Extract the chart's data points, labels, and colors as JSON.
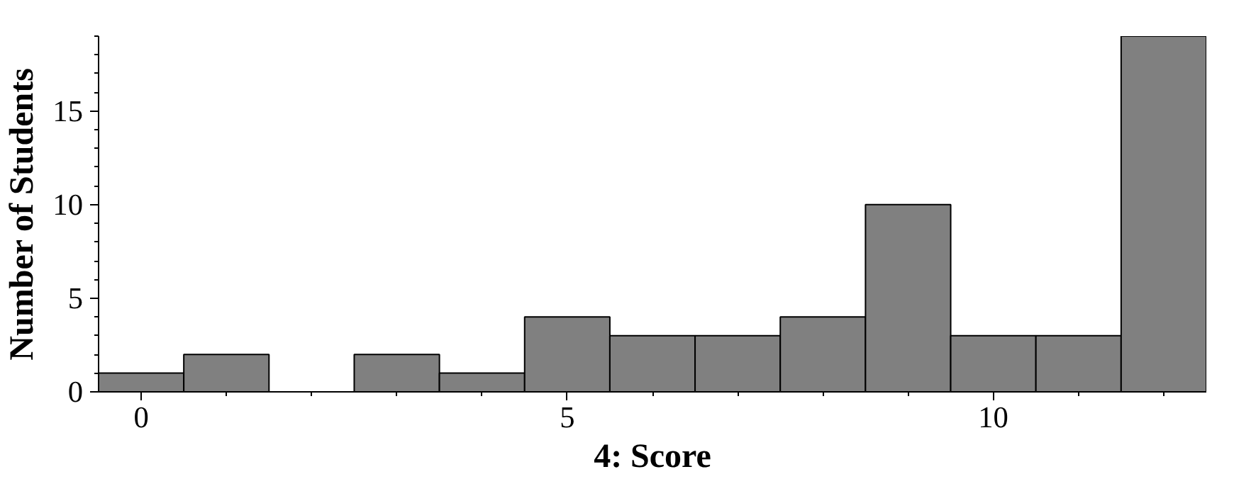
{
  "chart_data": {
    "type": "histogram",
    "xlabel": "4: Score",
    "ylabel": "Number of Students",
    "bins": [
      -0.5,
      0.5,
      1.5,
      2.5,
      3.5,
      4.5,
      5.5,
      6.5,
      7.5,
      8.5,
      9.5,
      10.5,
      11.5,
      12.5
    ],
    "values": [
      1,
      2,
      0,
      2,
      1,
      4,
      3,
      3,
      4,
      10,
      3,
      3,
      19
    ],
    "color": "#808080",
    "xlim": [
      -0.5,
      12.5
    ],
    "ylim": [
      0,
      19
    ],
    "xticks": [
      0,
      {
        "value": 1,
        "label": null
      },
      {
        "value": 2,
        "label": null
      },
      {
        "value": 3,
        "label": null
      },
      {
        "value": 4,
        "label": null
      },
      5,
      {
        "value": 6,
        "label": null
      },
      {
        "value": 7,
        "label": null
      },
      {
        "value": 8,
        "label": null
      },
      {
        "value": 9,
        "label": null
      },
      10,
      {
        "value": 11,
        "label": null
      },
      {
        "value": 12,
        "label": null
      }
    ],
    "yticks": [
      0,
      {
        "value": 1,
        "label": null
      },
      {
        "value": 2,
        "label": null
      },
      {
        "value": 3,
        "label": null
      },
      {
        "value": 4,
        "label": null
      },
      5,
      {
        "value": 6,
        "label": null
      },
      {
        "value": 7,
        "label": null
      },
      {
        "value": 8,
        "label": null
      },
      {
        "value": 9,
        "label": null
      },
      10,
      {
        "value": 11,
        "label": null
      },
      {
        "value": 12,
        "label": null
      },
      {
        "value": 13,
        "label": null
      },
      {
        "value": 14,
        "label": null
      },
      15,
      {
        "value": 16,
        "label": null
      },
      {
        "value": 17,
        "label": null
      },
      {
        "value": 18,
        "label": null
      },
      {
        "value": 19,
        "label": null
      }
    ],
    "grid": false
  }
}
